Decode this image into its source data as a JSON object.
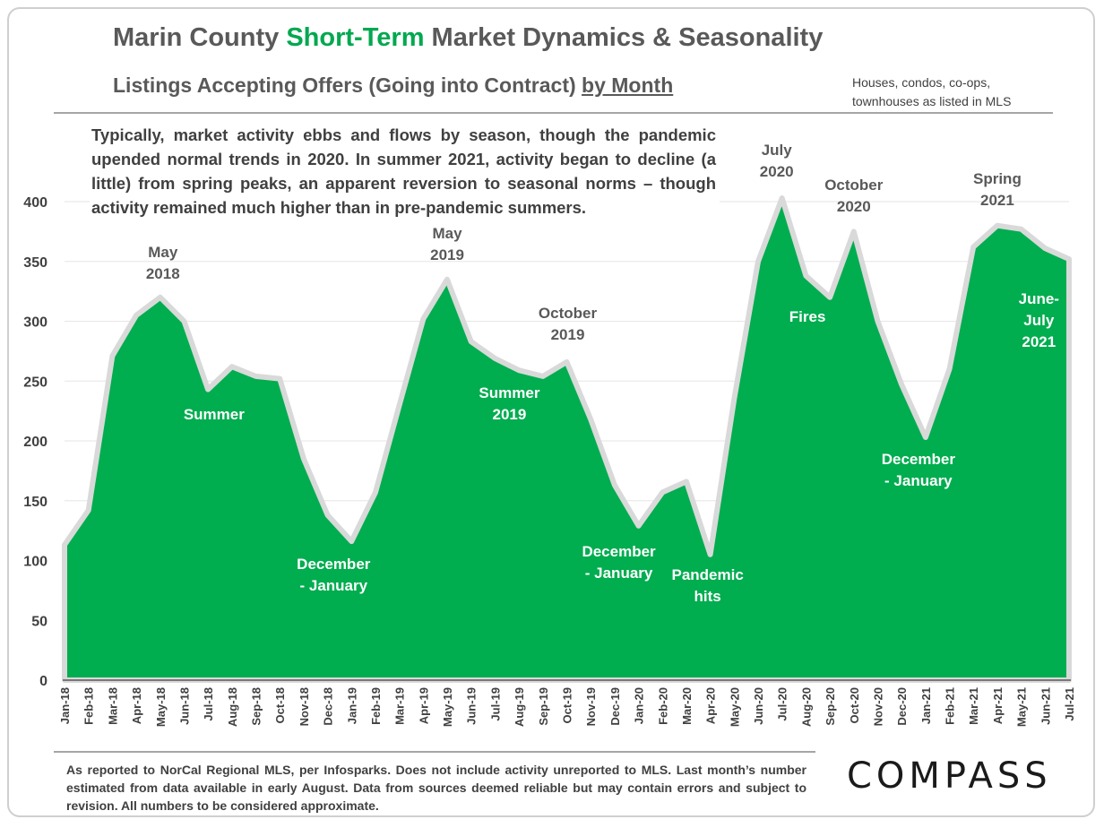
{
  "header": {
    "title_prefix": "Marin County ",
    "title_accent": "Short-Term",
    "title_suffix": " Market Dynamics & Seasonality",
    "subtitle_prefix": "Listings Accepting Offers (Going into Contract) ",
    "subtitle_underlined": "by Month",
    "note_line1": "Houses, condos, co-ops,",
    "note_line2": "townhouses as listed in MLS"
  },
  "description": "Typically, market activity ebbs and flows by season, though the pandemic upended normal trends in 2020. In summer 2021, activity began to decline (a little) from spring peaks, an apparent reversion to seasonal norms – though activity remained much higher than in pre-pandemic summers.",
  "footer": "As reported to NorCal Regional MLS, per Infosparks. Does not include activity unreported to MLS. Last month’s number estimated from data available in early August. Data from sources deemed reliable but may contain errors and subject to revision.  All numbers to be considered approximate.",
  "logo": "COMPASS",
  "colors": {
    "area": "#00ad4f",
    "outline": "#d9d9d9",
    "accent": "#00a84f",
    "text": "#595959"
  },
  "chart_data": {
    "type": "area",
    "x": [
      "Jan-18",
      "Feb-18",
      "Mar-18",
      "Apr-18",
      "May-18",
      "Jun-18",
      "Jul-18",
      "Aug-18",
      "Sep-18",
      "Oct-18",
      "Nov-18",
      "Dec-18",
      "Jan-19",
      "Feb-19",
      "Mar-19",
      "Apr-19",
      "May-19",
      "Jun-19",
      "Jul-19",
      "Aug-19",
      "Sep-19",
      "Oct-19",
      "Nov-19",
      "Dec-19",
      "Jan-20",
      "Feb-20",
      "Mar-20",
      "Apr-20",
      "May-20",
      "Jun-20",
      "Jul-20",
      "Aug-20",
      "Sep-20",
      "Oct-20",
      "Nov-20",
      "Dec-20",
      "Jan-21",
      "Feb-21",
      "Mar-21",
      "Apr-21",
      "May-21",
      "Jun-21",
      "Jul-21"
    ],
    "values": [
      113,
      142,
      271,
      305,
      320,
      300,
      243,
      262,
      254,
      252,
      185,
      138,
      116,
      157,
      230,
      302,
      335,
      283,
      269,
      259,
      254,
      266,
      218,
      163,
      129,
      157,
      166,
      105,
      235,
      350,
      403,
      338,
      320,
      375,
      300,
      247,
      203,
      260,
      362,
      380,
      377,
      361,
      352
    ],
    "ylim": [
      0,
      400
    ],
    "yticks": [
      0,
      50,
      100,
      150,
      200,
      250,
      300,
      350,
      400
    ],
    "grid": true,
    "annotations": [
      {
        "lines": [
          "May",
          "2018"
        ],
        "color": "#595959",
        "at": "May-18"
      },
      {
        "lines": [
          "Summer"
        ],
        "color": "#ffffff",
        "at": "Aug-18"
      },
      {
        "lines": [
          "December",
          "- January"
        ],
        "color": "#ffffff",
        "at": "Jan-19"
      },
      {
        "lines": [
          "May",
          "2019"
        ],
        "color": "#595959",
        "at": "May-19"
      },
      {
        "lines": [
          "Summer",
          "2019"
        ],
        "color": "#ffffff",
        "at": "Jul-19"
      },
      {
        "lines": [
          "October",
          "2019"
        ],
        "color": "#595959",
        "at": "Oct-19"
      },
      {
        "lines": [
          "December",
          "- January"
        ],
        "color": "#ffffff",
        "at": "Jan-20"
      },
      {
        "lines": [
          "Pandemic",
          "hits"
        ],
        "color": "#ffffff",
        "at": "Apr-20"
      },
      {
        "lines": [
          "July",
          "2020"
        ],
        "color": "#595959",
        "at": "Jul-20"
      },
      {
        "lines": [
          "Fires"
        ],
        "color": "#ffffff",
        "at": "Sep-20"
      },
      {
        "lines": [
          "October",
          "2020"
        ],
        "color": "#595959",
        "at": "Oct-20"
      },
      {
        "lines": [
          "December",
          "- January"
        ],
        "color": "#ffffff",
        "at": "Jan-21"
      },
      {
        "lines": [
          "Spring",
          "2021"
        ],
        "color": "#595959",
        "at": "Apr-21"
      },
      {
        "lines": [
          "June-",
          "July",
          "2021"
        ],
        "color": "#ffffff",
        "at": "Jun-21"
      }
    ]
  }
}
